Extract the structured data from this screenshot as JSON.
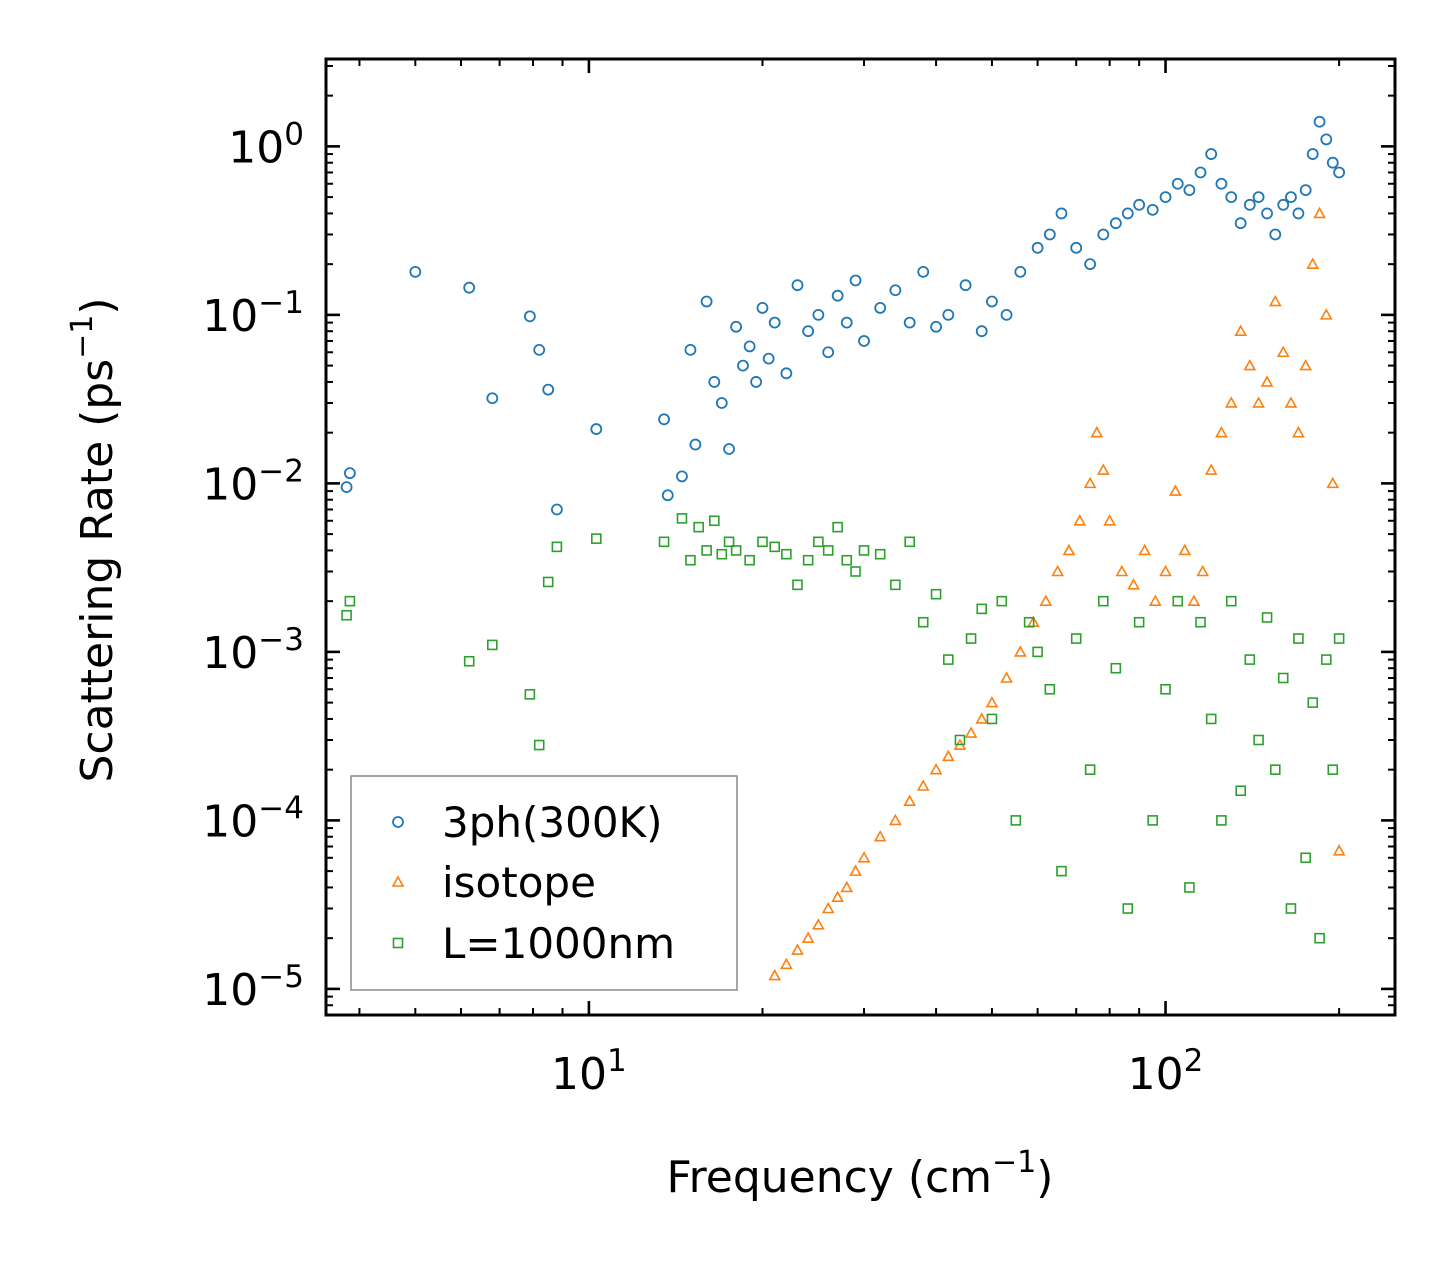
{
  "chart_data": {
    "type": "scatter",
    "title": "",
    "xscale": "log",
    "yscale": "log",
    "xlabel": "Frequency (cm",
    "xlabel_sup": "−1",
    "xlabel_end": ")",
    "ylabel": "Scattering Rate (ps",
    "ylabel_sup": "−1",
    "ylabel_end": ")",
    "xlim": [
      3.5,
      250
    ],
    "ylim": [
      7e-06,
      3.3
    ],
    "x_ticks": [
      {
        "value": 10,
        "base": "10",
        "exp": "1"
      },
      {
        "value": 100,
        "base": "10",
        "exp": "2"
      }
    ],
    "y_ticks": [
      {
        "value": 1,
        "base": "10",
        "exp": "0"
      },
      {
        "value": 0.1,
        "base": "10",
        "exp": "−1"
      },
      {
        "value": 0.01,
        "base": "10",
        "exp": "−2"
      },
      {
        "value": 0.001,
        "base": "10",
        "exp": "−3"
      },
      {
        "value": 0.0001,
        "base": "10",
        "exp": "−4"
      },
      {
        "value": 1e-05,
        "base": "10",
        "exp": "−5"
      }
    ],
    "legend_position": "lower-left",
    "series": [
      {
        "name": "3ph(300K)",
        "marker": "circle",
        "color": "#1f77b4",
        "x": [
          3.8,
          3.85,
          5.0,
          6.2,
          6.8,
          7.9,
          8.2,
          8.5,
          8.8,
          10.3,
          13.5,
          13.7,
          14.5,
          15.0,
          15.3,
          16.0,
          16.5,
          17.0,
          17.5,
          18.0,
          18.5,
          19.0,
          19.5,
          20.0,
          20.5,
          21.0,
          22.0,
          23.0,
          24.0,
          25.0,
          26.0,
          27.0,
          28.0,
          29.0,
          30.0,
          32.0,
          34.0,
          36.0,
          38.0,
          40.0,
          42.0,
          45.0,
          48.0,
          50.0,
          53.0,
          56.0,
          60.0,
          63.0,
          66.0,
          70.0,
          74.0,
          78.0,
          82.0,
          86.0,
          90.0,
          95.0,
          100.0,
          105.0,
          110.0,
          115.0,
          120.0,
          125.0,
          130.0,
          135.0,
          140.0,
          145.0,
          150.0,
          155.0,
          160.0,
          165.0,
          170.0,
          175.0,
          180.0,
          185.0,
          190.0,
          195.0,
          200.0
        ],
        "y": [
          0.0095,
          0.0115,
          0.18,
          0.145,
          0.032,
          0.098,
          0.062,
          0.036,
          0.007,
          0.021,
          0.024,
          0.0085,
          0.011,
          0.062,
          0.017,
          0.12,
          0.04,
          0.03,
          0.016,
          0.085,
          0.05,
          0.065,
          0.04,
          0.11,
          0.055,
          0.09,
          0.045,
          0.15,
          0.08,
          0.1,
          0.06,
          0.13,
          0.09,
          0.16,
          0.07,
          0.11,
          0.14,
          0.09,
          0.18,
          0.085,
          0.1,
          0.15,
          0.08,
          0.12,
          0.1,
          0.18,
          0.25,
          0.3,
          0.4,
          0.25,
          0.2,
          0.3,
          0.35,
          0.4,
          0.45,
          0.42,
          0.5,
          0.6,
          0.55,
          0.7,
          0.9,
          0.6,
          0.5,
          0.35,
          0.45,
          0.5,
          0.4,
          0.3,
          0.45,
          0.5,
          0.4,
          0.55,
          0.9,
          1.4,
          1.1,
          0.8,
          0.7
        ]
      },
      {
        "name": "isotope",
        "marker": "triangle",
        "color": "#ff7f0e",
        "x": [
          21.0,
          22.0,
          23.0,
          24.0,
          25.0,
          26.0,
          27.0,
          28.0,
          29.0,
          30.0,
          32.0,
          34.0,
          36.0,
          38.0,
          40.0,
          42.0,
          44.0,
          46.0,
          48.0,
          50.0,
          53.0,
          56.0,
          59.0,
          62.0,
          65.0,
          68.0,
          71.0,
          74.0,
          76.0,
          78.0,
          80.0,
          84.0,
          88.0,
          92.0,
          96.0,
          100.0,
          104.0,
          108.0,
          112.0,
          116.0,
          120.0,
          125.0,
          130.0,
          135.0,
          140.0,
          145.0,
          150.0,
          155.0,
          160.0,
          165.0,
          170.0,
          175.0,
          180.0,
          185.0,
          190.0,
          195.0,
          200.0
        ],
        "y": [
          1.2e-05,
          1.4e-05,
          1.7e-05,
          2e-05,
          2.4e-05,
          3e-05,
          3.5e-05,
          4e-05,
          5e-05,
          6e-05,
          8e-05,
          0.0001,
          0.00013,
          0.00016,
          0.0002,
          0.00024,
          0.00028,
          0.00033,
          0.0004,
          0.0005,
          0.0007,
          0.001,
          0.0015,
          0.002,
          0.003,
          0.004,
          0.006,
          0.01,
          0.02,
          0.012,
          0.006,
          0.003,
          0.0025,
          0.004,
          0.002,
          0.003,
          0.009,
          0.004,
          0.002,
          0.003,
          0.012,
          0.02,
          0.03,
          0.08,
          0.05,
          0.03,
          0.04,
          0.12,
          0.06,
          0.03,
          0.02,
          0.05,
          0.2,
          0.4,
          0.1,
          0.01,
          6.6e-05
        ]
      },
      {
        "name": "L=1000nm",
        "marker": "square",
        "color": "#2ca02c",
        "x": [
          3.8,
          3.85,
          6.2,
          6.8,
          7.9,
          8.2,
          8.5,
          8.8,
          10.3,
          13.5,
          14.5,
          15.0,
          15.5,
          16.0,
          16.5,
          17.0,
          17.5,
          18.0,
          19.0,
          20.0,
          21.0,
          22.0,
          23.0,
          24.0,
          25.0,
          26.0,
          27.0,
          28.0,
          29.0,
          30.0,
          32.0,
          34.0,
          36.0,
          38.0,
          40.0,
          42.0,
          44.0,
          46.0,
          48.0,
          50.0,
          52.0,
          55.0,
          58.0,
          60.0,
          63.0,
          66.0,
          70.0,
          74.0,
          78.0,
          82.0,
          86.0,
          90.0,
          95.0,
          100.0,
          105.0,
          110.0,
          115.0,
          120.0,
          125.0,
          130.0,
          135.0,
          140.0,
          145.0,
          150.0,
          155.0,
          160.0,
          165.0,
          170.0,
          175.0,
          180.0,
          185.0,
          190.0,
          195.0,
          200.0
        ],
        "y": [
          0.00165,
          0.002,
          0.00088,
          0.0011,
          0.00056,
          0.00028,
          0.0026,
          0.0042,
          0.0047,
          0.0045,
          0.0062,
          0.0035,
          0.0055,
          0.004,
          0.006,
          0.0038,
          0.0045,
          0.004,
          0.0035,
          0.0045,
          0.0042,
          0.0038,
          0.0025,
          0.0035,
          0.0045,
          0.004,
          0.0055,
          0.0035,
          0.003,
          0.004,
          0.0038,
          0.0025,
          0.0045,
          0.0015,
          0.0022,
          0.0009,
          0.0003,
          0.0012,
          0.0018,
          0.0004,
          0.002,
          0.0001,
          0.0015,
          0.001,
          0.0006,
          5e-05,
          0.0012,
          0.0002,
          0.002,
          0.0008,
          3e-05,
          0.0015,
          0.0001,
          0.0006,
          0.002,
          4e-05,
          0.0015,
          0.0004,
          0.0001,
          0.002,
          0.00015,
          0.0009,
          0.0003,
          0.0016,
          0.0002,
          0.0007,
          3e-05,
          0.0012,
          6e-05,
          0.0005,
          2e-05,
          0.0009,
          0.0002,
          0.0012
        ]
      }
    ]
  }
}
